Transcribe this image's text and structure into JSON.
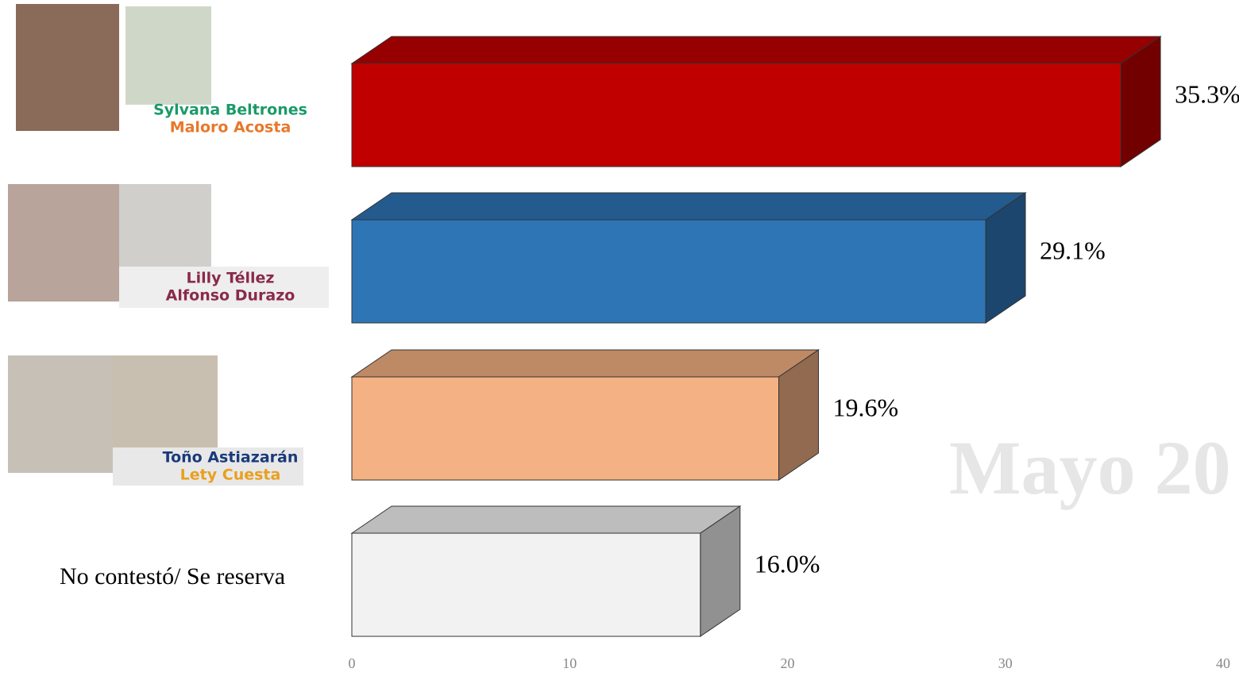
{
  "chart_data": {
    "type": "bar3d",
    "categories": [
      [
        "Sylvana Beltrones",
        "Maloro Acosta"
      ],
      [
        "Lilly Téllez",
        "Alfonso Durazo"
      ],
      [
        "Toño Astiazarán",
        "Lety Cuesta"
      ],
      [
        "No contestó/ Se reserva"
      ]
    ],
    "values": [
      35.3,
      29.1,
      19.6,
      16.0
    ],
    "value_labels": [
      "35.3%",
      "29.1%",
      "19.6%",
      "16.0%"
    ],
    "colors": [
      "#c00000",
      "#2e75b6",
      "#f4b183",
      "#f2f2f2"
    ],
    "xlim": [
      0,
      40
    ],
    "xticks": [
      0,
      10,
      20,
      30,
      40
    ],
    "watermark": "Mayo 20"
  }
}
